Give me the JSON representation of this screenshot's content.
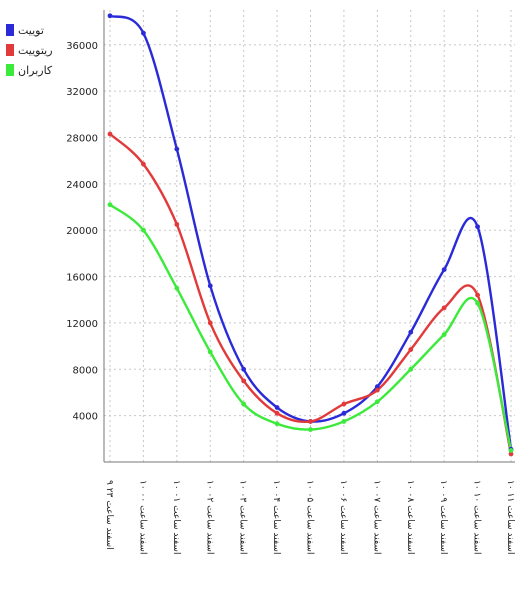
{
  "chart_data": {
    "type": "line",
    "title": "",
    "xlabel": "",
    "ylabel": "",
    "ylim": [
      0,
      39000
    ],
    "yticks": [
      4000,
      8000,
      12000,
      16000,
      20000,
      24000,
      28000,
      32000,
      36000
    ],
    "grid": true,
    "legend_position": "top-left",
    "categories": [
      "۹ اسفند ساعت ۲۳",
      "۱۰ اسفند ساعت ۰۰",
      "۱۰ اسفند ساعت ۰۱",
      "۱۰ اسفند ساعت ۰۲",
      "۱۰ اسفند ساعت ۰۳",
      "۱۰ اسفند ساعت ۰۴",
      "۱۰ اسفند ساعت ۰۵",
      "۱۰ اسفند ساعت ۰۶",
      "۱۰ اسفند ساعت ۰۷",
      "۱۰ اسفند ساعت ۰۸",
      "۱۰ اسفند ساعت ۰۹",
      "۱۰ اسفند ساعت ۱۰",
      "۱۰ اسفند ساعت ۱۱"
    ],
    "series": [
      {
        "name": "توییت",
        "color": "#2a2ad8",
        "values": [
          38500,
          37000,
          27000,
          15200,
          8000,
          4700,
          3500,
          4200,
          6500,
          11200,
          16600,
          20300,
          1100
        ]
      },
      {
        "name": "ریتوییت",
        "color": "#e23a3a",
        "values": [
          28300,
          25700,
          20500,
          12000,
          7000,
          4200,
          3500,
          5000,
          6200,
          9700,
          13300,
          14400,
          700
        ]
      },
      {
        "name": "کاربران",
        "color": "#3bea3b",
        "values": [
          22200,
          20000,
          15000,
          9500,
          5000,
          3300,
          2800,
          3500,
          5200,
          8000,
          11000,
          13700,
          1000
        ]
      }
    ]
  }
}
